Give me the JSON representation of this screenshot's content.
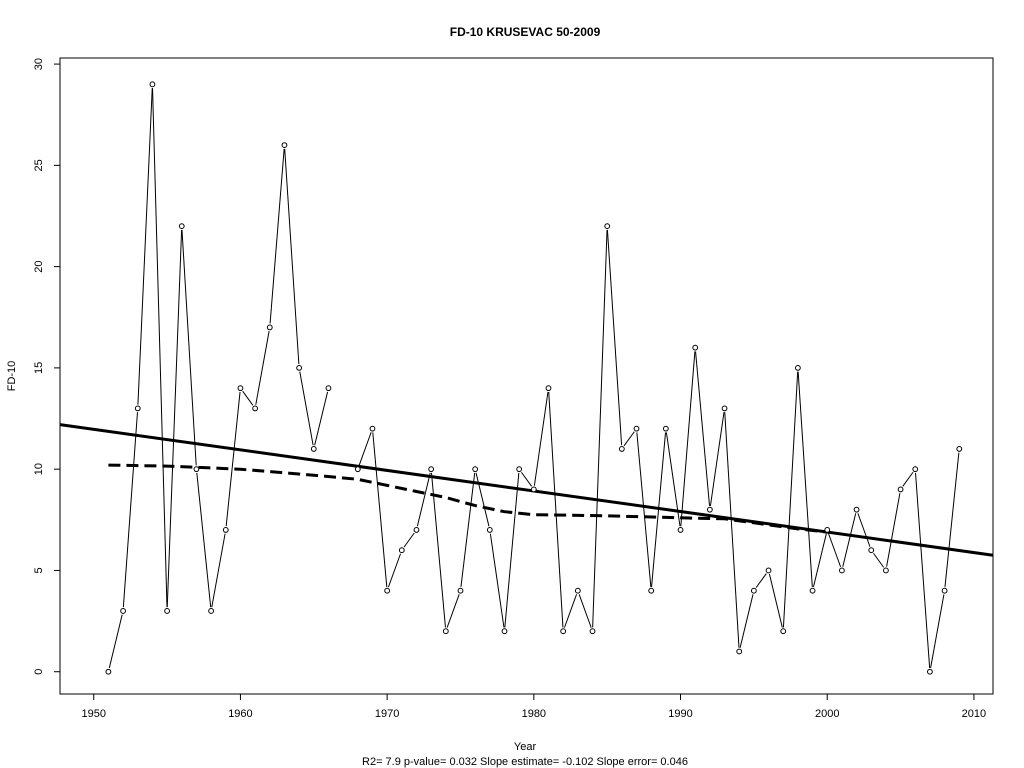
{
  "chart_data": {
    "type": "line",
    "title": "FD-10   KRUSEVAC 50-2009",
    "xlabel": "Year",
    "ylabel": "FD-10",
    "footer": "R2= 7.9  p-value= 0.032  Slope estimate= -0.102  Slope error= 0.046",
    "xlim": [
      1947.7,
      2011.3
    ],
    "ylim": [
      -1.1,
      30.3
    ],
    "xticks": [
      1950,
      1960,
      1970,
      1980,
      1990,
      2000,
      2010
    ],
    "yticks": [
      0,
      5,
      10,
      15,
      20,
      25,
      30
    ],
    "grid": false,
    "series": [
      {
        "style": "points-and-lines",
        "x": [
          1951,
          1952,
          1953,
          1954,
          1955,
          1956,
          1957,
          1958,
          1959,
          1960,
          1961,
          1962,
          1963,
          1964,
          1965,
          1966,
          1967,
          1968,
          1969,
          1970,
          1971,
          1972,
          1973,
          1974,
          1975,
          1976,
          1977,
          1978,
          1979,
          1980,
          1981,
          1982,
          1983,
          1984,
          1985,
          1986,
          1987,
          1988,
          1989,
          1990,
          1991,
          1992,
          1993,
          1994,
          1995,
          1996,
          1997,
          1998,
          1999,
          2000,
          2001,
          2002,
          2003,
          2004,
          2005,
          2006,
          2007,
          2008,
          2009
        ],
        "values": [
          0,
          3,
          13,
          29,
          3,
          22,
          10,
          3,
          7,
          14,
          13,
          17,
          26,
          15,
          11,
          14,
          null,
          10,
          12,
          4,
          6,
          7,
          10,
          2,
          4,
          10,
          7,
          2,
          10,
          9,
          14,
          2,
          4,
          2,
          22,
          11,
          12,
          4,
          12,
          7,
          16,
          8,
          13,
          1,
          4,
          5,
          2,
          15,
          4,
          7,
          5,
          8,
          6,
          5,
          9,
          10,
          0,
          4,
          11
        ]
      },
      {
        "style": "solid-trend",
        "x": [
          1947.7,
          2011.3
        ],
        "values": [
          12.2,
          5.75
        ]
      },
      {
        "style": "dashed-smooth",
        "x": [
          1951,
          1955,
          1960,
          1965,
          1968,
          1970,
          1972,
          1974,
          1976,
          1978,
          1980,
          1985,
          1990,
          1993,
          1995,
          1998,
          2000
        ],
        "values": [
          10.2,
          10.15,
          10.0,
          9.7,
          9.5,
          9.2,
          8.9,
          8.6,
          8.2,
          7.9,
          7.75,
          7.7,
          7.6,
          7.55,
          7.35,
          7.05,
          6.9
        ]
      }
    ]
  }
}
